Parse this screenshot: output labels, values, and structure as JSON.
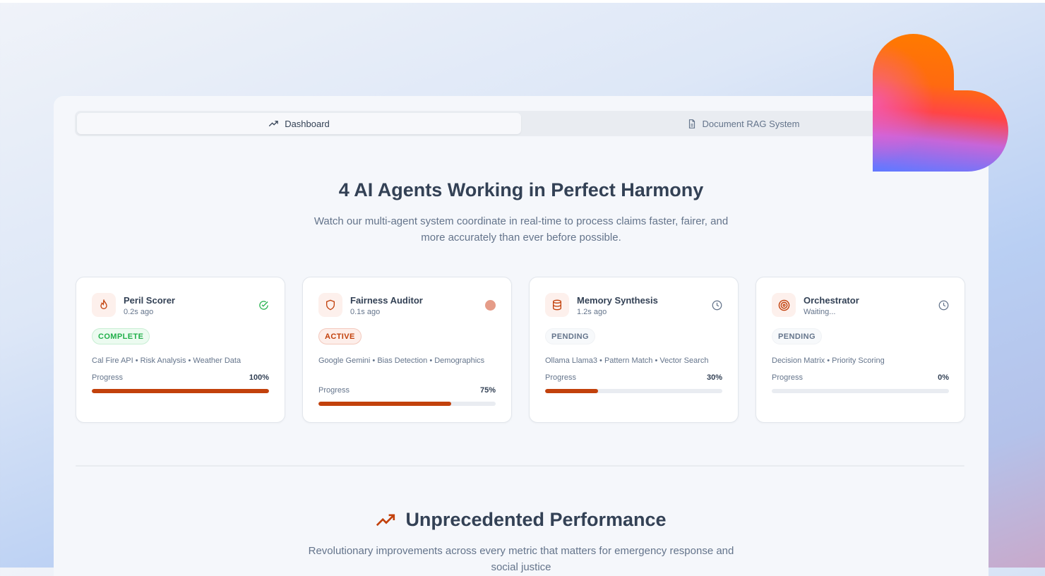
{
  "tabs": [
    {
      "label": "Dashboard",
      "icon": "trending-up-icon",
      "active": true
    },
    {
      "label": "Document RAG System",
      "icon": "file-text-icon",
      "active": false
    }
  ],
  "hero": {
    "title": "4 AI Agents Working in Perfect Harmony",
    "subtitle": "Watch our multi-agent system coordinate in real-time to process claims faster, fairer, and more accurately than ever before possible."
  },
  "agents": [
    {
      "name": "Peril Scorer",
      "time": "0.2s ago",
      "icon": "flame-icon",
      "status": "COMPLETE",
      "status_icon": "check-circle-icon",
      "tags": "Cal Fire API • Risk Analysis • Weather Data",
      "progress_label": "Progress",
      "progress": "100%",
      "progress_value": 100
    },
    {
      "name": "Fairness Auditor",
      "time": "0.1s ago",
      "icon": "shield-icon",
      "status": "ACTIVE",
      "status_icon": "active-dot-icon",
      "tags": "Google Gemini • Bias Detection • Demographics",
      "progress_label": "Progress",
      "progress": "75%",
      "progress_value": 75
    },
    {
      "name": "Memory Synthesis",
      "time": "1.2s ago",
      "icon": "database-icon",
      "status": "PENDING",
      "status_icon": "clock-icon",
      "tags": "Ollama Llama3 • Pattern Match • Vector Search",
      "progress_label": "Progress",
      "progress": "30%",
      "progress_value": 30
    },
    {
      "name": "Orchestrator",
      "time": "Waiting...",
      "icon": "target-icon",
      "status": "PENDING",
      "status_icon": "clock-icon",
      "tags": "Decision Matrix • Priority Scoring",
      "progress_label": "Progress",
      "progress": "0%",
      "progress_value": 0
    }
  ],
  "performance": {
    "title": "Unprecedented Performance",
    "icon": "trending-up-icon",
    "subtitle": "Revolutionary improvements across every metric that matters for emergency response and social justice"
  },
  "colors": {
    "accent": "#c2410c",
    "complete": "#22b04b",
    "text": "#334155",
    "muted": "#64748b"
  }
}
